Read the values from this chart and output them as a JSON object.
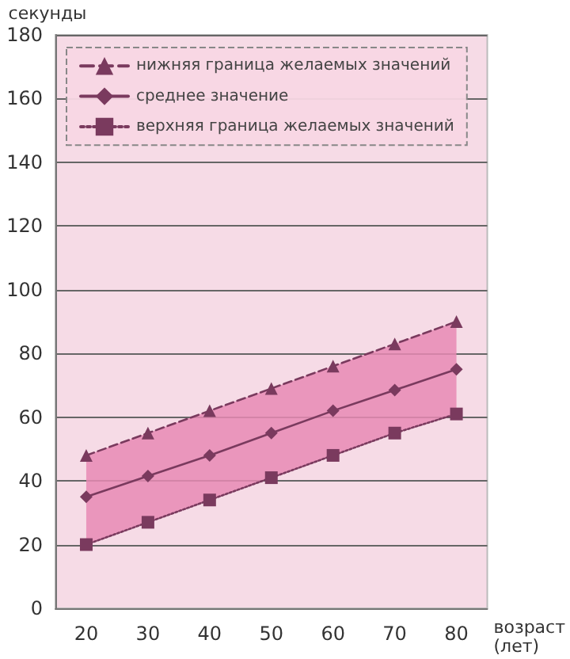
{
  "chart_data": {
    "type": "line",
    "xlabel": "возраст\n(лет)",
    "ylabel": "секунды",
    "x": [
      20,
      30,
      40,
      50,
      60,
      70,
      80
    ],
    "series": [
      {
        "name": "нижняя граница желаемых значений",
        "color": "#7a3a5e",
        "marker": "triangle",
        "line_style": "dashed",
        "values": [
          48,
          55,
          62,
          69,
          76,
          83,
          90
        ]
      },
      {
        "name": "среднее значение",
        "color": "#7a3a5e",
        "marker": "diamond",
        "line_style": "solid",
        "values": [
          35,
          41.5,
          48,
          55,
          62,
          68.5,
          75
        ],
        "lower": [
          20,
          27,
          34,
          41,
          48,
          55,
          61
        ],
        "upper": [
          48,
          55,
          62,
          69,
          76,
          83,
          90
        ]
      },
      {
        "name": "верхняя граница желаемых значений",
        "color": "#7a3a5e",
        "marker": "square",
        "line_style": "dotted",
        "values": [
          20,
          27,
          34,
          41,
          48,
          55,
          61
        ]
      }
    ],
    "xlim": [
      15,
      85
    ],
    "xticks": [
      20,
      30,
      40,
      50,
      60,
      70,
      80
    ],
    "ylim": [
      0,
      180
    ],
    "yticks": [
      0,
      20,
      40,
      60,
      80,
      100,
      120,
      140,
      160,
      180
    ],
    "grid": "y",
    "legend": "top left"
  }
}
